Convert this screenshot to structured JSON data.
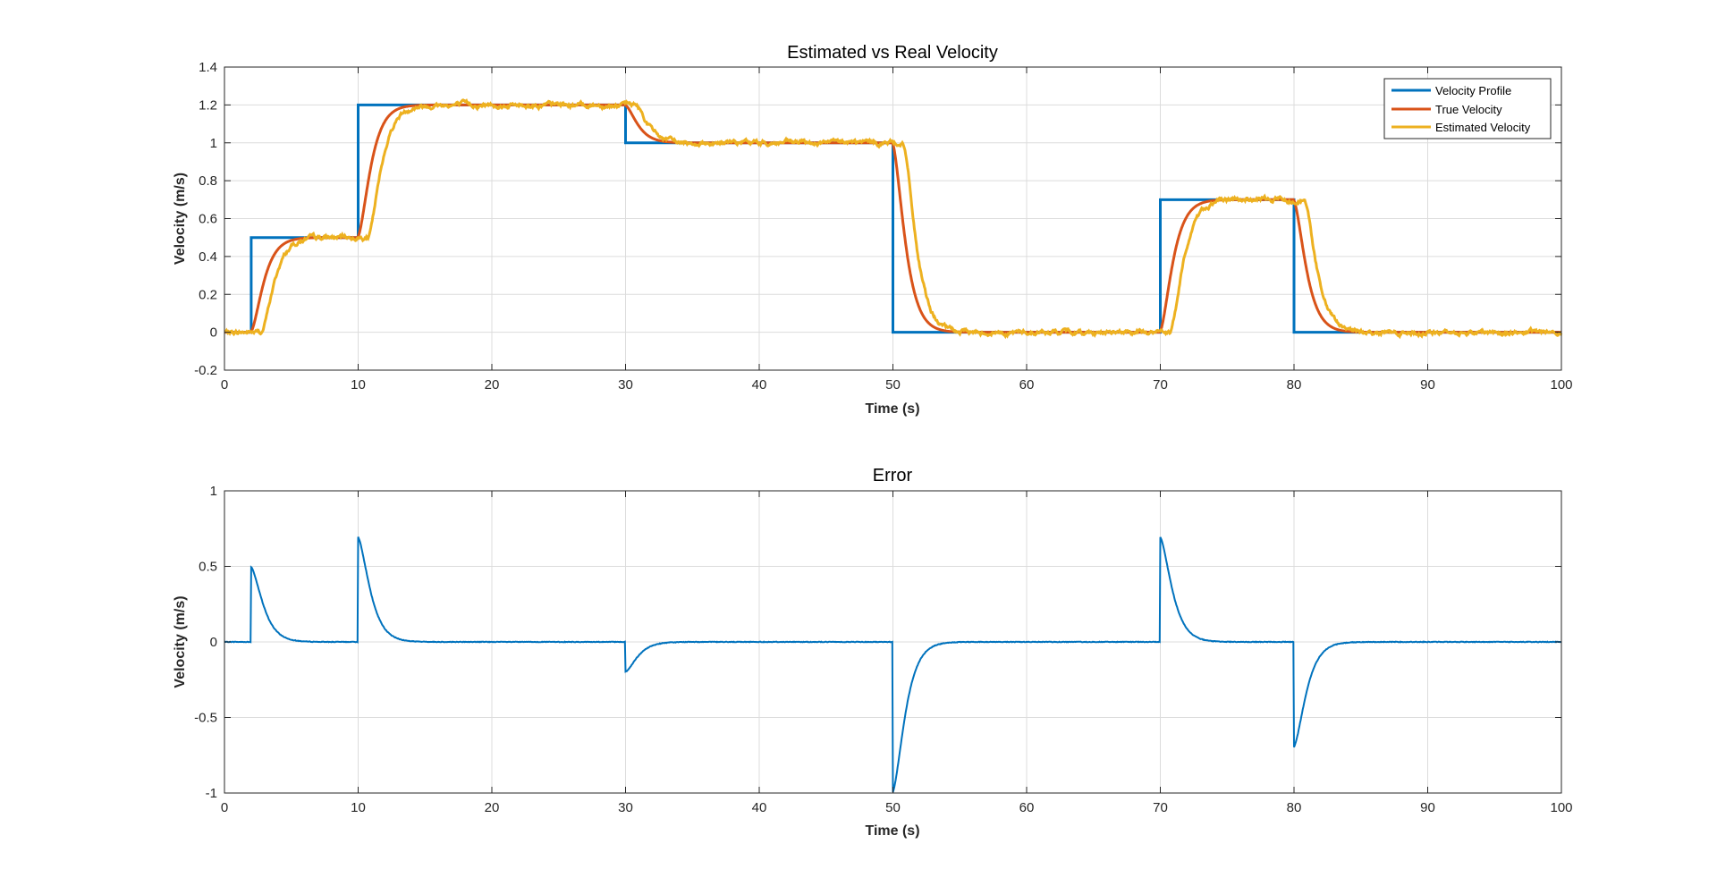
{
  "chart_data": [
    {
      "type": "line",
      "title": "Estimated vs Real Velocity",
      "xlabel": "Time (s)",
      "ylabel": "Velocity (m/s)",
      "xlim": [
        0,
        100
      ],
      "ylim": [
        -0.2,
        1.4
      ],
      "xticks": [
        "0",
        "10",
        "20",
        "30",
        "40",
        "50",
        "60",
        "70",
        "80",
        "90",
        "100"
      ],
      "yticks": [
        "-0.2",
        "0",
        "0.2",
        "0.4",
        "0.6",
        "0.8",
        "1",
        "1.2",
        "1.4"
      ],
      "grid": true,
      "legend_position": "top-right",
      "steps": [
        {
          "t": 0,
          "v": 0
        },
        {
          "t": 2,
          "v": 0.5
        },
        {
          "t": 10,
          "v": 1.2
        },
        {
          "t": 30,
          "v": 1.0
        },
        {
          "t": 50,
          "v": 0
        },
        {
          "t": 70,
          "v": 0.7
        },
        {
          "t": 80,
          "v": 0
        },
        {
          "t": 100,
          "v": 0
        }
      ],
      "series": [
        {
          "name": "Velocity Profile",
          "color": "#0072BD",
          "kind": "step"
        },
        {
          "name": "True Velocity",
          "color": "#D95319",
          "kind": "first-order-lag",
          "time_constant_s": 0.6
        },
        {
          "name": "Estimated Velocity",
          "color": "#EDB120",
          "kind": "lagged-noisy",
          "time_constant_s": 0.6,
          "delay_s": 0.8,
          "noise": 0.007
        }
      ]
    },
    {
      "type": "line",
      "title": "Error",
      "xlabel": "Time (s)",
      "ylabel": "Velocity (m/s)",
      "xlim": [
        0,
        100
      ],
      "ylim": [
        -1,
        1
      ],
      "xticks": [
        "0",
        "10",
        "20",
        "30",
        "40",
        "50",
        "60",
        "70",
        "80",
        "90",
        "100"
      ],
      "yticks": [
        "-1",
        "-0.5",
        "0",
        "0.5",
        "1"
      ],
      "grid": true,
      "series": [
        {
          "color": "#0072BD",
          "kind": "profile-minus-true",
          "noise": 0.002
        }
      ]
    }
  ]
}
